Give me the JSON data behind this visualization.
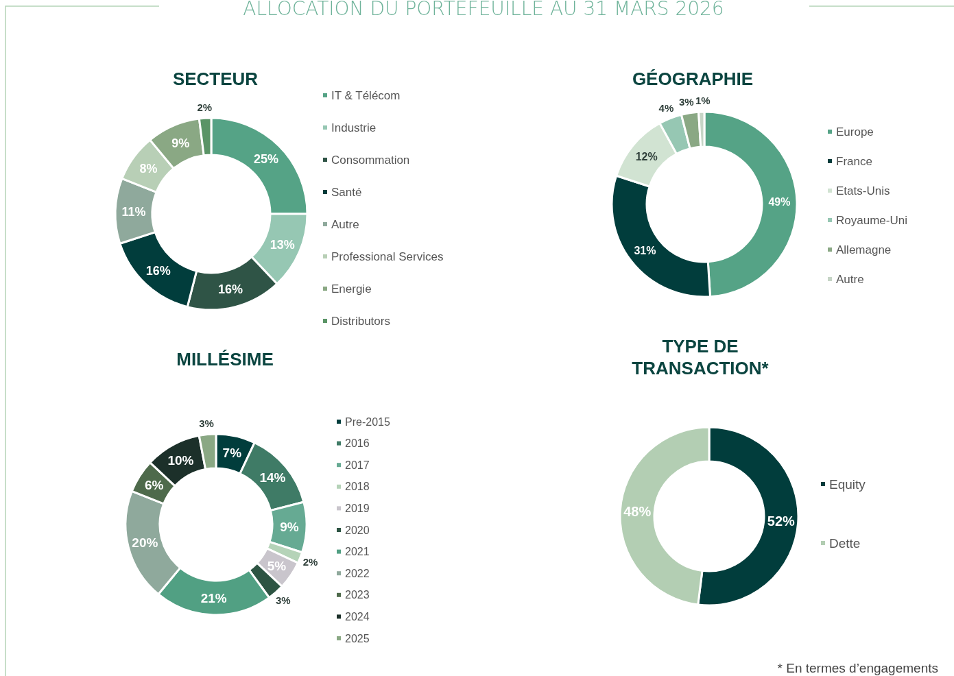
{
  "chart_data": [
    {
      "type": "donut",
      "title": "SECTEUR",
      "annotations": [
        "ALLOCATION DU PORTEFEUILLE AU 31 MARS 2026"
      ],
      "legend": "right",
      "categories": [
        "IT & Télécom",
        "Industrie",
        "Consommation",
        "Santé",
        "Autre",
        "Professional Services",
        "Energie",
        "Distributors"
      ],
      "values": [
        25,
        13,
        16,
        16,
        11,
        8,
        9,
        2
      ],
      "value_labels": [
        "25%",
        "13%",
        "16%",
        "16%",
        "11%",
        "8%",
        "9%",
        "2%"
      ],
      "colors": [
        "#55a386",
        "#96c7b3",
        "#2f5446",
        "#013d3c",
        "#8fa99c",
        "#b8cfb6",
        "#8aa884",
        "#5a9466"
      ]
    },
    {
      "type": "donut",
      "title": "GÉOGRAPHIE",
      "legend": "right",
      "categories": [
        "Europe",
        "France",
        "Etats-Unis",
        "Royaume-Uni",
        "Allemagne",
        "Autre"
      ],
      "values": [
        49,
        31,
        12,
        4,
        3,
        1
      ],
      "value_labels": [
        "49%",
        "31%",
        "12%",
        "4%",
        "3%",
        "1%"
      ],
      "colors": [
        "#55a386",
        "#013d3c",
        "#d1e3d2",
        "#96c7b3",
        "#8aa884",
        "#c6d5c6"
      ]
    },
    {
      "type": "donut",
      "title": "MILLÉSIME",
      "legend": "right",
      "categories": [
        "Pre-2015",
        "2016",
        "2017",
        "2018",
        "2019",
        "2020",
        "2021",
        "2022",
        "2023",
        "2024",
        "2025"
      ],
      "values": [
        7,
        14,
        9,
        2,
        5,
        3,
        21,
        20,
        6,
        10,
        3
      ],
      "value_labels": [
        "7%",
        "14%",
        "9%",
        "2%",
        "5%",
        "3%",
        "21%",
        "20%",
        "6%",
        "10%",
        "3%"
      ],
      "colors": [
        "#013d3c",
        "#3f7b66",
        "#66aa93",
        "#b5d3b8",
        "#c9c5cc",
        "#2d5443",
        "#51a083",
        "#8fa99c",
        "#4e6a4b",
        "#1c302a",
        "#8aa884"
      ]
    },
    {
      "type": "donut",
      "title": "TYPE DE TRANSACTION*",
      "annotations": [
        "* En termes d’engagements"
      ],
      "legend": "right",
      "categories": [
        "Equity",
        "Dette"
      ],
      "values": [
        52,
        48
      ],
      "value_labels": [
        "52%",
        "48%"
      ],
      "colors": [
        "#013d3c",
        "#b3ceb3"
      ]
    }
  ]
}
